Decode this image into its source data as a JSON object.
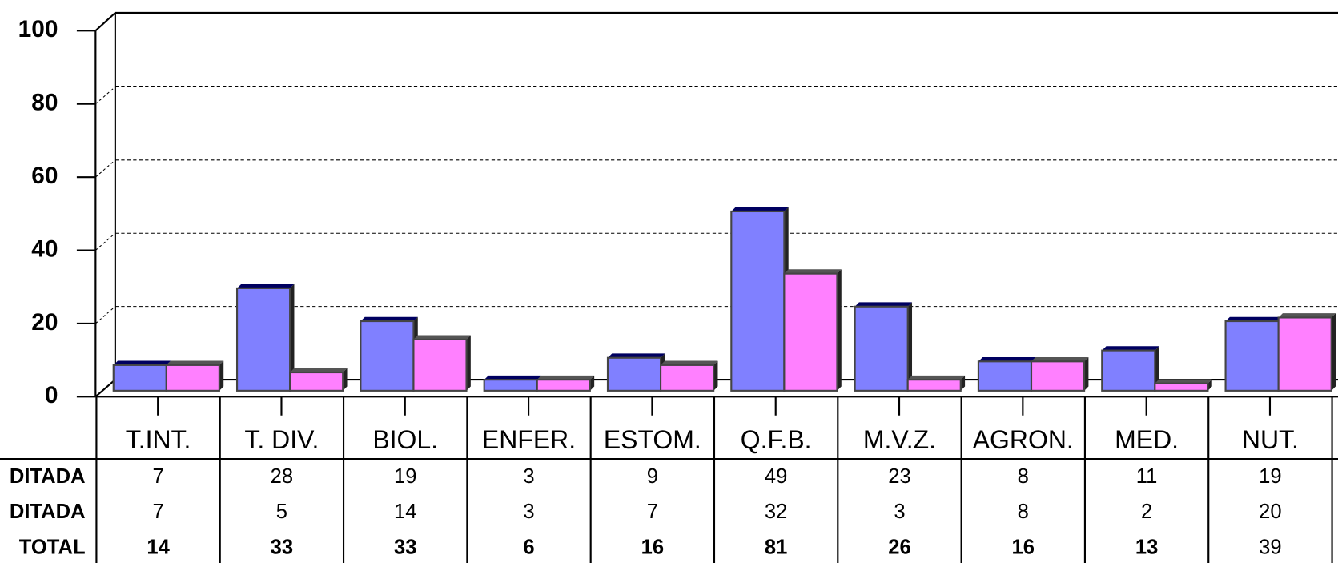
{
  "chart_data": {
    "type": "bar3d",
    "categories": [
      "T.INT.",
      "T. DIV.",
      "BIOL.",
      "ENFER.",
      "ESTOM.",
      "Q.F.B.",
      "M.V.Z.",
      "AGRON.",
      "MED.",
      "NUT."
    ],
    "series": [
      {
        "name": "DITADA",
        "color": "#8080ff",
        "values": [
          7,
          28,
          19,
          3,
          9,
          49,
          23,
          8,
          11,
          19
        ]
      },
      {
        "name": "DITADA",
        "color": "#ff80ff",
        "values": [
          7,
          5,
          14,
          3,
          7,
          32,
          3,
          8,
          2,
          20
        ]
      }
    ],
    "total": {
      "label": "TOTAL",
      "values": [
        14,
        33,
        33,
        6,
        16,
        81,
        26,
        16,
        13,
        39
      ]
    },
    "ylim": [
      0,
      100
    ],
    "yticks": [
      0,
      20,
      40,
      60,
      80,
      100
    ],
    "grid": true
  }
}
